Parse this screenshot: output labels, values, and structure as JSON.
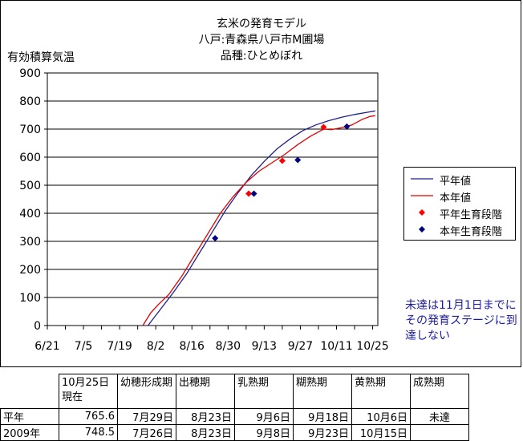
{
  "chart_data": {
    "type": "line",
    "title_lines": [
      "玄米の発育モデル",
      "八戸:青森県八戸市M圃場",
      "品種:ひとめぼれ"
    ],
    "ylabel": "有効積算気温",
    "xlabel": "",
    "ylim": [
      0,
      900
    ],
    "yticks": [
      0,
      100,
      200,
      300,
      400,
      500,
      600,
      700,
      800,
      900
    ],
    "xticks": [
      "6/21",
      "7/5",
      "7/19",
      "8/2",
      "8/16",
      "8/30",
      "9/13",
      "9/27",
      "10/11",
      "10/25"
    ],
    "xtick_day_index": [
      0,
      14,
      28,
      42,
      56,
      70,
      84,
      98,
      112,
      126
    ],
    "grid": "horizontal",
    "legend_position": "right",
    "series": [
      {
        "name": "平年値",
        "kind": "line",
        "color": "#1f1f8f",
        "x": [
          39,
          44,
          49,
          54,
          59,
          64,
          69,
          74,
          79,
          84,
          89,
          94,
          99,
          104,
          109,
          114,
          119,
          124,
          127
        ],
        "y": [
          0,
          60,
          120,
          185,
          260,
          335,
          410,
          475,
          535,
          585,
          630,
          665,
          695,
          715,
          730,
          742,
          752,
          760,
          765
        ]
      },
      {
        "name": "本年値",
        "kind": "line",
        "color": "#e00000",
        "x": [
          37,
          40,
          43,
          47,
          52,
          57,
          62,
          67,
          72,
          77,
          82,
          87,
          92,
          97,
          102,
          107,
          110,
          114,
          118,
          122,
          125,
          127
        ],
        "y": [
          0,
          45,
          75,
          110,
          175,
          250,
          325,
          400,
          460,
          510,
          550,
          580,
          610,
          645,
          675,
          700,
          698,
          705,
          715,
          735,
          745,
          748
        ]
      },
      {
        "name": "平年生育段階",
        "kind": "marker",
        "color": "#ff0000",
        "x": [
          78,
          91,
          107
        ],
        "y": [
          470,
          587,
          707
        ]
      },
      {
        "name": "本年生育段階",
        "kind": "marker",
        "color": "#000080",
        "x": [
          65,
          80,
          97,
          116
        ],
        "y": [
          311,
          470,
          590,
          709
        ]
      }
    ]
  },
  "note": "未達は11月1日までにその発育ステージに到達しない",
  "table": {
    "headers": [
      "",
      "10月25日現在",
      "幼穂形成期",
      "出穂期",
      "乳熟期",
      "糊熟期",
      "黄熟期",
      "成熟期"
    ],
    "rows": [
      [
        "平年",
        "765.6",
        "7月29日",
        "8月23日",
        "9月6日",
        "9月18日",
        "10月6日",
        "未達"
      ],
      [
        "2009年",
        "748.5",
        "7月26日",
        "8月23日",
        "9月8日",
        "9月23日",
        "10月15日",
        ""
      ]
    ]
  }
}
